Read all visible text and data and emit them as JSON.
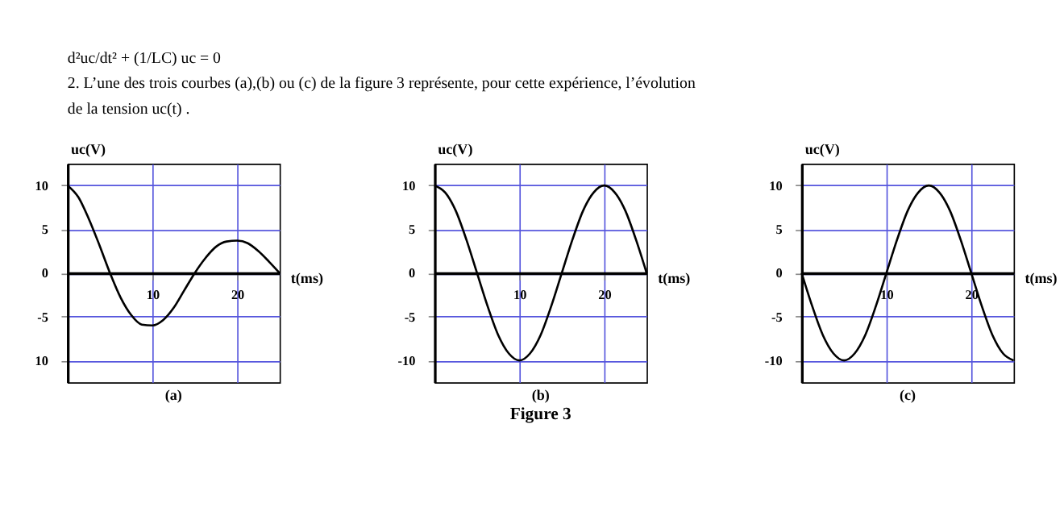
{
  "chart_data": [
    {
      "type": "line",
      "title": "(a)",
      "xlabel": "t(ms)",
      "ylabel": "uc(V)",
      "annotations": [
        "d²uc/dt² + (1/LC) uc = 0",
        "2. L’une des trois courbes (a),(b) ou (c) de la figure 3 représente, pour cette expérience, l’évolution",
        "de la tension uc(t) ."
      ],
      "x": [
        0,
        1.25,
        2.5,
        3.75,
        5,
        6.25,
        7.5,
        8.75,
        10,
        11.25,
        12.5,
        13.75,
        15,
        16.25,
        17.5,
        18.75,
        20,
        21.25,
        22.5,
        23.75,
        25
      ],
      "series": [
        {
          "color": "#000000",
          "values": [
            10,
            8.7,
            6.2,
            3.2,
            0,
            -2.8,
            -4.8,
            -5.9,
            -6.0,
            -5.4,
            -4.0,
            -2.0,
            0,
            1.7,
            3.0,
            3.6,
            3.7,
            3.4,
            2.5,
            1.3,
            0
          ]
        }
      ],
      "xlim": [
        0,
        25
      ],
      "ylim": [
        -12.5,
        12.5
      ],
      "xticks": [
        10,
        20
      ],
      "yticks": [
        10,
        5,
        0,
        -5,
        {
          "value": -10,
          "label": "10"
        }
      ],
      "grid": true,
      "marker": "none",
      "line_style": "solid"
    },
    {
      "type": "line",
      "title": "(b)",
      "xlabel": "t(ms)",
      "ylabel": "uc(V)",
      "annotations": [
        "Figure 3"
      ],
      "x": [
        0,
        1.25,
        2.5,
        3.75,
        5,
        6.25,
        7.5,
        8.75,
        10,
        11.25,
        12.5,
        13.75,
        15,
        16.25,
        17.5,
        18.75,
        20,
        21.25,
        22.5,
        23.75,
        25
      ],
      "series": [
        {
          "color": "#000000",
          "values": [
            10,
            9.2,
            7.1,
            3.8,
            0,
            -3.8,
            -7.1,
            -9.2,
            -10,
            -9.2,
            -7.1,
            -3.8,
            0,
            3.8,
            7.1,
            9.2,
            10,
            9.2,
            7.1,
            3.8,
            0
          ]
        }
      ],
      "xlim": [
        0,
        25
      ],
      "ylim": [
        -12.5,
        12.5
      ],
      "xticks": [
        10,
        20
      ],
      "yticks": [
        10,
        5,
        0,
        -5,
        -10
      ],
      "grid": true,
      "marker": "none",
      "line_style": "solid"
    },
    {
      "type": "line",
      "title": "(c)",
      "xlabel": "t(ms)",
      "ylabel": "uc(V)",
      "x": [
        0,
        1.25,
        2.5,
        3.75,
        5,
        6.25,
        7.5,
        8.75,
        10,
        11.25,
        12.5,
        13.75,
        15,
        16.25,
        17.5,
        18.75,
        20,
        21.25,
        22.5,
        23.75,
        25
      ],
      "series": [
        {
          "color": "#000000",
          "values": [
            0,
            -3.8,
            -7.1,
            -9.2,
            -10,
            -9.2,
            -7.1,
            -3.8,
            0,
            3.8,
            7.1,
            9.2,
            10,
            9.2,
            7.1,
            3.8,
            0,
            -3.8,
            -7.1,
            -9.2,
            -10
          ]
        }
      ],
      "xlim": [
        0,
        25
      ],
      "ylim": [
        -12.5,
        12.5
      ],
      "xticks": [
        10,
        20
      ],
      "yticks": [
        10,
        5,
        0,
        -5,
        -10
      ],
      "grid": true,
      "marker": "none",
      "line_style": "solid"
    }
  ]
}
